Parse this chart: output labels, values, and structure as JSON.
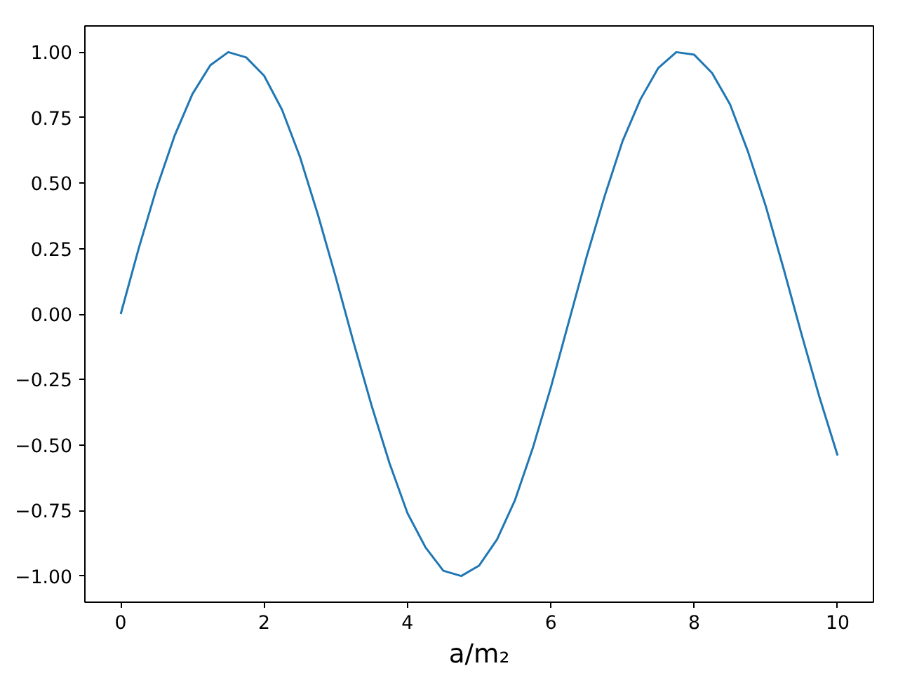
{
  "chart_data": {
    "type": "line",
    "xlabel": "a/m₂",
    "x": [
      0,
      0.25,
      0.5,
      0.75,
      1,
      1.25,
      1.5,
      1.75,
      2,
      2.25,
      2.5,
      2.75,
      3,
      3.25,
      3.5,
      3.75,
      4,
      4.25,
      4.5,
      4.75,
      5,
      5.25,
      5.5,
      5.75,
      6,
      6.25,
      6.5,
      6.75,
      7,
      7.25,
      7.5,
      7.75,
      8,
      8.25,
      8.5,
      8.75,
      9,
      9.25,
      9.5,
      9.75,
      10
    ],
    "series": [
      {
        "color": "#1f77b4",
        "values": [
          0,
          0.25,
          0.48,
          0.68,
          0.84,
          0.95,
          1.0,
          0.98,
          0.91,
          0.78,
          0.6,
          0.38,
          0.14,
          -0.11,
          -0.35,
          -0.57,
          -0.76,
          -0.89,
          -0.98,
          -1.0,
          -0.96,
          -0.86,
          -0.71,
          -0.51,
          -0.28,
          -0.03,
          0.22,
          0.45,
          0.66,
          0.82,
          0.94,
          1.0,
          0.99,
          0.92,
          0.8,
          0.62,
          0.41,
          0.17,
          -0.08,
          -0.32,
          -0.54
        ]
      }
    ],
    "xlim": [
      -0.5,
      10.5
    ],
    "ylim": [
      -1.1,
      1.1
    ],
    "xticks": [
      0,
      2,
      4,
      6,
      8,
      10
    ],
    "yticks": [
      {
        "value": -1,
        "label": "−1.00"
      },
      {
        "value": -0.75,
        "label": "−0.75"
      },
      {
        "value": -0.5,
        "label": "−0.50"
      },
      {
        "value": -0.25,
        "label": "−0.25"
      },
      {
        "value": 0,
        "label": "0.00"
      },
      {
        "value": 0.25,
        "label": "0.25"
      },
      {
        "value": 0.5,
        "label": "0.50"
      },
      {
        "value": 0.75,
        "label": "0.75"
      },
      {
        "value": 1,
        "label": "1.00"
      }
    ],
    "grid": false
  }
}
